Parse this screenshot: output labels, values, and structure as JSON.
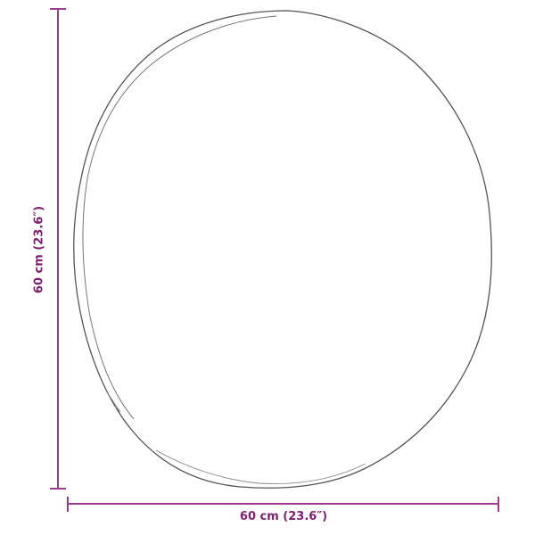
{
  "dimensions": {
    "width_label": "60 cm (23.6″)",
    "height_label": "60 cm (23.6″)"
  },
  "colors": {
    "dimension_line": "#9b3c8c",
    "dimension_text": "#7f1f6f",
    "outline": "#555555"
  },
  "product_shape": "round-mirror-outline"
}
